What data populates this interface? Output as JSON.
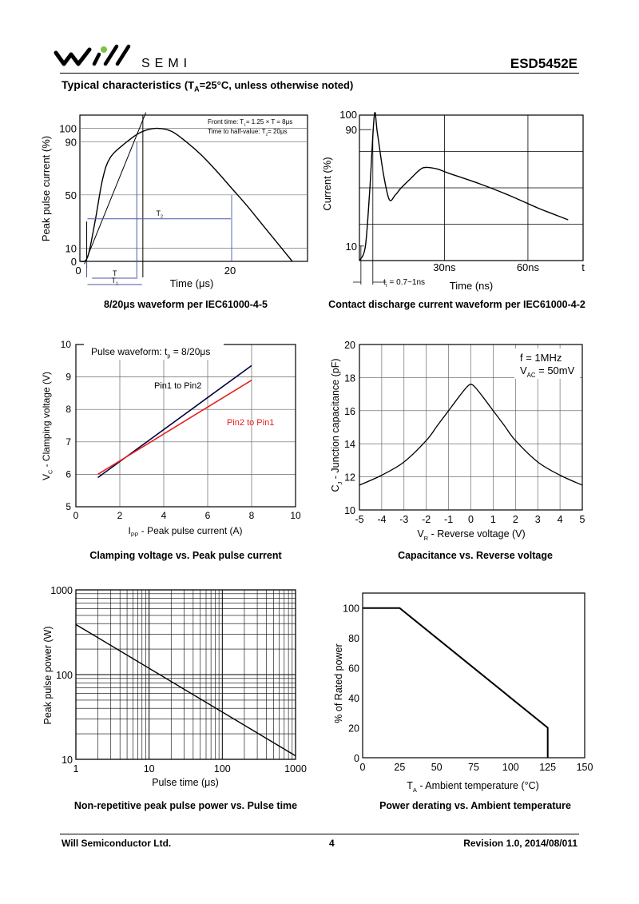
{
  "header": {
    "logo_text": "SEMI",
    "part_number": "ESD5452E",
    "section_title": "Typical characteristics",
    "conditions_prefix": "(T",
    "conditions_sub": "A",
    "conditions_rest": "=25°C, unless otherwise noted)"
  },
  "chart_data": [
    {
      "id": "waveform-8-20",
      "type": "line",
      "caption": "8/20μs waveform per IEC61000-4-5",
      "ylabel": "Peak pulse current (%)",
      "xlabel": "Time (μs)",
      "y_ticks": [
        "100",
        "90",
        "50",
        "10",
        "0"
      ],
      "x_ticks": [
        "0",
        "20"
      ],
      "ylim": [
        0,
        110
      ],
      "xlim": [
        0,
        30
      ],
      "annotations": {
        "front_prefix": "Front time: T",
        "front_sub": "1",
        "front_rest": "= 1.25 × T = 8μs",
        "half_prefix": "Time to half-value: T",
        "half_sub": "2",
        "half_rest": "= 20μs",
        "t_label": "T",
        "t1_label": "T",
        "t1_sub": "1",
        "t2_label": "T",
        "t2_sub": "2"
      },
      "series": [
        {
          "x": [
            0,
            1,
            2,
            3,
            4,
            6,
            8,
            10,
            12,
            14,
            16,
            18,
            20,
            22,
            24,
            26,
            28
          ],
          "y": [
            0,
            3,
            30,
            62,
            78,
            89,
            97,
            100,
            98,
            90,
            80,
            68,
            55,
            42,
            28,
            14,
            0
          ]
        }
      ]
    },
    {
      "id": "contact-discharge",
      "type": "line",
      "caption": "Contact discharge current waveform per IEC61000-4-2",
      "ylabel": "Current (%)",
      "xlabel": "Time (ns)",
      "y_ticks": [
        "100",
        "90",
        "10"
      ],
      "x_ticks": [
        "30ns",
        "60ns"
      ],
      "x_end_label": "t",
      "rise_prefix": "t",
      "rise_sub": "r",
      "rise_rest": " = 0.7~1ns",
      "ylim": [
        0,
        100
      ],
      "xlim": [
        0,
        75
      ],
      "series": [
        {
          "x": [
            0,
            2,
            3.5,
            5,
            6,
            8,
            10,
            12,
            14,
            17,
            20,
            22,
            26,
            30,
            40,
            50,
            60,
            65,
            70
          ],
          "y": [
            0,
            10,
            50,
            100,
            88,
            60,
            42,
            45,
            50,
            56,
            62,
            64,
            63,
            60,
            53,
            45,
            36,
            32,
            28
          ]
        }
      ]
    },
    {
      "id": "clamping-voltage",
      "type": "line",
      "caption": "Clamping voltage vs. Peak pulse current",
      "ylabel_prefix": "V",
      "ylabel_sub": "C",
      "ylabel_rest": " - Clamping voltage (V)",
      "xlabel_prefix": "I",
      "xlabel_sub": "PP",
      "xlabel_rest": " - Peak pulse current (A)",
      "note_prefix": "Pulse waveform: t",
      "note_sub": "p",
      "note_rest": " = 8/20μs",
      "x_ticks": [
        "0",
        "2",
        "4",
        "6",
        "8",
        "10"
      ],
      "y_ticks": [
        "5",
        "6",
        "7",
        "8",
        "9",
        "10"
      ],
      "xlim": [
        0,
        10
      ],
      "ylim": [
        5,
        10
      ],
      "series": [
        {
          "name": "Pin1 to Pin2",
          "color": "#000040",
          "x": [
            1,
            8
          ],
          "y": [
            5.9,
            9.35
          ]
        },
        {
          "name": "Pin2 to Pin1",
          "color": "#e8201c",
          "x": [
            1,
            8
          ],
          "y": [
            6.0,
            8.9
          ]
        }
      ]
    },
    {
      "id": "capacitance",
      "type": "line",
      "caption": "Capacitance vs. Reverse voltage",
      "ylabel_prefix": "C",
      "ylabel_sub": "J",
      "ylabel_rest": " - Junction capacitance (pF)",
      "xlabel_prefix": "V",
      "xlabel_sub": "R",
      "xlabel_rest": " - Reverse voltage (V)",
      "note_line1": "f = 1MHz",
      "note2_prefix": "V",
      "note2_sub": "AC",
      "note2_rest": " = 50mV",
      "x_ticks": [
        "-5",
        "-4",
        "-3",
        "-2",
        "-1",
        "0",
        "1",
        "2",
        "3",
        "4",
        "5"
      ],
      "y_ticks": [
        "10",
        "12",
        "14",
        "16",
        "18",
        "20"
      ],
      "xlim": [
        -5,
        5
      ],
      "ylim": [
        10,
        20
      ],
      "series": [
        {
          "x": [
            -5,
            -4,
            -3,
            -2,
            -1.5,
            -1,
            -0.5,
            -0.2,
            0,
            0.2,
            0.5,
            1,
            1.5,
            2,
            3,
            4,
            5
          ],
          "y": [
            11.5,
            12.1,
            12.9,
            14.2,
            15.1,
            16.0,
            16.9,
            17.4,
            17.6,
            17.4,
            16.9,
            16.0,
            15.1,
            14.2,
            12.9,
            12.1,
            11.5
          ]
        }
      ]
    },
    {
      "id": "pulse-power",
      "type": "line",
      "caption": "Non-repetitive peak pulse power vs. Pulse time",
      "ylabel": "Peak pulse power (W)",
      "xlabel": "Pulse time (μs)",
      "x_scale": "log",
      "y_scale": "log",
      "x_ticks": [
        "1",
        "10",
        "100",
        "1000"
      ],
      "y_ticks": [
        "10",
        "100",
        "1000"
      ],
      "xlim": [
        1,
        1000
      ],
      "ylim": [
        10,
        1000
      ],
      "series": [
        {
          "x": [
            1,
            1000
          ],
          "y": [
            390,
            11
          ]
        }
      ]
    },
    {
      "id": "power-derating",
      "type": "line",
      "caption": "Power derating vs. Ambient temperature",
      "ylabel": "% of Rated power",
      "xlabel_prefix": "T",
      "xlabel_sub": "A",
      "xlabel_rest": " - Ambient temperature (°C)",
      "x_ticks": [
        "0",
        "25",
        "50",
        "75",
        "100",
        "125",
        "150"
      ],
      "y_ticks": [
        "0",
        "20",
        "40",
        "60",
        "80",
        "100"
      ],
      "xlim": [
        0,
        150
      ],
      "ylim": [
        0,
        110
      ],
      "series": [
        {
          "x": [
            0,
            25,
            125,
            125
          ],
          "y": [
            100,
            100,
            20,
            0
          ]
        }
      ]
    }
  ],
  "footer": {
    "company": "Will Semiconductor Ltd.",
    "page": "4",
    "revision": "Revision 1.0, 2014/08/011"
  }
}
